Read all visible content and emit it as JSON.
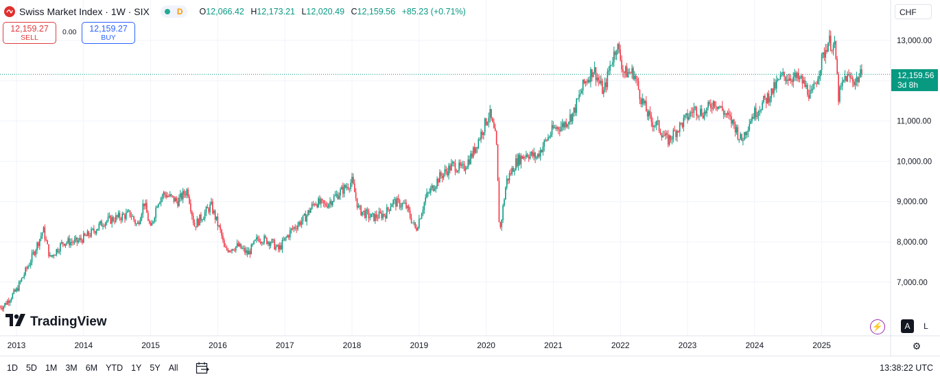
{
  "header": {
    "symbol_title": "Swiss Market Index · 1W · SIX",
    "interval_flag": "D",
    "ohlc": [
      {
        "key": "O",
        "value": "12,066.42"
      },
      {
        "key": "H",
        "value": "12,173.21"
      },
      {
        "key": "L",
        "value": "12,020.49"
      },
      {
        "key": "C",
        "value": "12,159.56"
      }
    ],
    "change": "+85.23 (+0.71%)",
    "up_color": "#089981",
    "down_color": "#f23645"
  },
  "trade": {
    "sell_price": "12,159.27",
    "sell_label": "SELL",
    "spread": "0.00",
    "buy_price": "12,159.27",
    "buy_label": "BUY"
  },
  "currency": "CHF",
  "last_price": {
    "value": "12,159.56",
    "countdown": "3d 8h"
  },
  "logo_text": "TradingView",
  "scale_buttons": {
    "auto": "A",
    "log": "L"
  },
  "ranges": [
    "1D",
    "5D",
    "1M",
    "3M",
    "6M",
    "YTD",
    "1Y",
    "5Y",
    "All"
  ],
  "clock": "13:38:22 UTC",
  "chart_data": {
    "type": "candlestick",
    "x_unit": "year",
    "xticks": [
      "2013",
      "2014",
      "2015",
      "2016",
      "2017",
      "2018",
      "2019",
      "2020",
      "2021",
      "2022",
      "2023",
      "2024",
      "2025"
    ],
    "yticks": [
      "7,000.00",
      "8,000.00",
      "9,000.00",
      "10,000.00",
      "11,000.00",
      "12,000.00",
      "13,000.00"
    ],
    "ylim": [
      6300,
      13200
    ],
    "last_close": 12159.56,
    "grid": true,
    "series_close": [
      [
        2012.8,
        6400
      ],
      [
        2013.0,
        6800
      ],
      [
        2013.2,
        7500
      ],
      [
        2013.4,
        8300
      ],
      [
        2013.5,
        7600
      ],
      [
        2013.7,
        8000
      ],
      [
        2013.9,
        8000
      ],
      [
        2014.1,
        8200
      ],
      [
        2014.3,
        8500
      ],
      [
        2014.5,
        8600
      ],
      [
        2014.7,
        8700
      ],
      [
        2014.8,
        8400
      ],
      [
        2014.9,
        9000
      ],
      [
        2015.0,
        8300
      ],
      [
        2015.1,
        9000
      ],
      [
        2015.2,
        9200
      ],
      [
        2015.4,
        9000
      ],
      [
        2015.55,
        9300
      ],
      [
        2015.65,
        8400
      ],
      [
        2015.8,
        8700
      ],
      [
        2015.9,
        8900
      ],
      [
        2016.05,
        8200
      ],
      [
        2016.1,
        7800
      ],
      [
        2016.3,
        7900
      ],
      [
        2016.45,
        7700
      ],
      [
        2016.6,
        8100
      ],
      [
        2016.8,
        8000
      ],
      [
        2016.9,
        7800
      ],
      [
        2017.1,
        8300
      ],
      [
        2017.3,
        8600
      ],
      [
        2017.45,
        9000
      ],
      [
        2017.6,
        8900
      ],
      [
        2017.8,
        9200
      ],
      [
        2018.0,
        9500
      ],
      [
        2018.1,
        8800
      ],
      [
        2018.3,
        8600
      ],
      [
        2018.5,
        8700
      ],
      [
        2018.6,
        9000
      ],
      [
        2018.8,
        8900
      ],
      [
        2018.95,
        8300
      ],
      [
        2019.1,
        9100
      ],
      [
        2019.3,
        9600
      ],
      [
        2019.5,
        9900
      ],
      [
        2019.65,
        9800
      ],
      [
        2019.8,
        10200
      ],
      [
        2020.05,
        11200
      ],
      [
        2020.15,
        10500
      ],
      [
        2020.2,
        8200
      ],
      [
        2020.3,
        9500
      ],
      [
        2020.45,
        10000
      ],
      [
        2020.6,
        10200
      ],
      [
        2020.75,
        10100
      ],
      [
        2020.85,
        10400
      ],
      [
        2021.0,
        10800
      ],
      [
        2021.15,
        10900
      ],
      [
        2021.3,
        11200
      ],
      [
        2021.45,
        11900
      ],
      [
        2021.6,
        12300
      ],
      [
        2021.75,
        11700
      ],
      [
        2021.85,
        12400
      ],
      [
        2021.95,
        12900
      ],
      [
        2022.05,
        12200
      ],
      [
        2022.2,
        12200
      ],
      [
        2022.3,
        11600
      ],
      [
        2022.45,
        11000
      ],
      [
        2022.55,
        10900
      ],
      [
        2022.7,
        10500
      ],
      [
        2022.8,
        10700
      ],
      [
        2022.95,
        11000
      ],
      [
        2023.1,
        11300
      ],
      [
        2023.25,
        11200
      ],
      [
        2023.4,
        11500
      ],
      [
        2023.55,
        11200
      ],
      [
        2023.7,
        10900
      ],
      [
        2023.8,
        10500
      ],
      [
        2023.95,
        11100
      ],
      [
        2024.1,
        11400
      ],
      [
        2024.25,
        11700
      ],
      [
        2024.4,
        12100
      ],
      [
        2024.55,
        12100
      ],
      [
        2024.7,
        12000
      ],
      [
        2024.85,
        11600
      ],
      [
        2025.0,
        12500
      ],
      [
        2025.1,
        13000
      ],
      [
        2025.2,
        12800
      ],
      [
        2025.25,
        11600
      ],
      [
        2025.35,
        12100
      ],
      [
        2025.5,
        12000
      ],
      [
        2025.6,
        12159
      ]
    ]
  }
}
